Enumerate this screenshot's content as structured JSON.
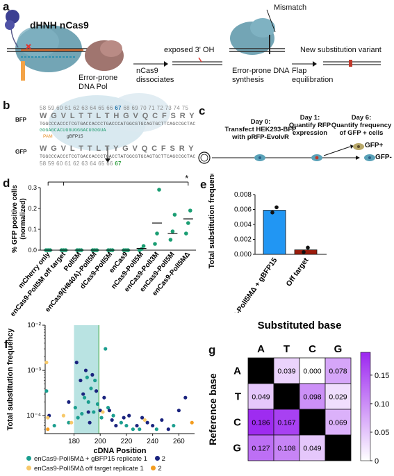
{
  "panels": {
    "a": {
      "label": "a",
      "enzyme": "dHNH nCas9",
      "polymerase": "Error-prone DNA Pol",
      "step1": "nCas9 dissociates",
      "exposed": "exposed 3' OH",
      "step2": "Error-prone DNA synthesis",
      "mismatch": "Mismatch",
      "step3": "Flap equilibration",
      "result": "New substitution variant"
    },
    "b": {
      "label": "b",
      "bfp_label": "BFP",
      "gfp_label": "GFP",
      "nums_top": "58 59 60 61 62 63 64 65 66",
      "num67_top": "67",
      "nums_top2": "68 69 70 71 72 73 74 75",
      "aa_top": "W  G  V  L  T  T  L  T  H  G  V  Q  C  F  S  R  Y",
      "dna_top": "TGGCCCACCCTCGTGACCACCCTGACCCATGGCGTGCAGTGCTTCAGCCGCTAC",
      "guide": "GGGAGCACUGGUGGGACUGGGUA",
      "pam": "PAM",
      "gbfp": "gBFP15",
      "aa_bottom": "W  G  V  L  T  T  L  T  Y  G  V  Q  C  F  S  R  Y",
      "dna_bottom": "TGGCCCACCCTCGTGACCACCCTGACCTATGGCGTGCAGTGCTTCAGCCGCTAC",
      "nums_bottom": "58 59 60 61 62 63 64 65 66",
      "num67_bottom": "67"
    },
    "c": {
      "label": "c",
      "day0_title": "Day 0:",
      "day0_text": "Transfect HEK293-BFP with pRFP-EvolvR",
      "day1_title": "Day 1:",
      "day1_text": "Quantify RFP expression",
      "day6_title": "Day 6:",
      "day6_text": "Quantify frequency of GFP + cells",
      "gfp_pos": "GFP+",
      "gfp_neg": "GFP-"
    },
    "d": {
      "label": "d"
    },
    "e": {
      "label": "e"
    },
    "f": {
      "label": "f",
      "legend": [
        {
          "text": "enCas9-PolI5MΔ + gBFP15 replicate 1",
          "color": "#1b9e8f"
        },
        {
          "text": "2",
          "color": "#1a237e"
        },
        {
          "text": "enCas9-PolI5MΔ off target replicate 1",
          "color": "#f7c96a"
        },
        {
          "text": "2",
          "color": "#f39c1e"
        }
      ]
    },
    "g": {
      "label": "g"
    }
  },
  "colors": {
    "green_dot": "#1b9e73",
    "blue_bar": "#2196f3",
    "red_bar": "#9b1b0b",
    "teal_band": "#7fcccb",
    "purple": "#9c27f0"
  },
  "chart_data": [
    {
      "id": "d",
      "type": "scatter",
      "ylabel": "% GFP positive cells\n(normalized)",
      "ylim": [
        0,
        0.3
      ],
      "yticks": [
        "0.0",
        "0.1",
        "0.2",
        "0.3"
      ],
      "significance": "*",
      "categories": [
        "mCherry only",
        "enCas9-PolI5M off target",
        "PolI5M",
        "enCas9(H840A)-PolI5M",
        "dCas9-PolI5M",
        "enCas9",
        "nCas9-PolI5M",
        "enCas9-PolI3M",
        "enCas9-PolI5M",
        "enCas9-PolI5MΔ"
      ],
      "points": [
        [
          0,
          0,
          0
        ],
        [
          0,
          0,
          0
        ],
        [
          0,
          0,
          0
        ],
        [
          0,
          0,
          0
        ],
        [
          0,
          0,
          0
        ],
        [
          0,
          0,
          0
        ],
        [
          0,
          0.005,
          0.02
        ],
        [
          0.03,
          0.08,
          0.29
        ],
        [
          0.05,
          0.09,
          0.17
        ],
        [
          0.08,
          0.13,
          0.19
        ]
      ],
      "means": [
        0,
        0,
        0,
        0,
        0,
        0,
        0.008,
        0.13,
        0.08,
        0.15
      ]
    },
    {
      "id": "e",
      "type": "bar",
      "ylabel": "Total substitution frequency",
      "ylim": [
        0,
        0.008
      ],
      "yticks": [
        "0.000",
        "0.002",
        "0.004",
        "0.006",
        "0.008"
      ],
      "categories": [
        "enCas9-PolI5MΔ + gBFP15",
        "Off target"
      ],
      "values": [
        0.0059,
        0.0006
      ],
      "points": [
        [
          0.0056,
          0.0063
        ],
        [
          0.0003,
          0.0009
        ]
      ]
    },
    {
      "id": "f",
      "type": "scatter",
      "xlabel": "cDNA Position",
      "ylabel": "Total substitution frequency",
      "xlim": [
        158,
        272
      ],
      "xticks": [
        "180",
        "200",
        "220",
        "240",
        "260"
      ],
      "ylog": [
        4e-05,
        0.01
      ],
      "yticks": [
        "10⁻²",
        "10⁻³",
        "10⁻⁴"
      ],
      "highlight_range": [
        180,
        199
      ],
      "marker_line": 199,
      "series": [
        {
          "name": "enCas9-PolI5MΔ + gBFP15 replicate 1",
          "points": [
            [
              159,
              0.00035
            ],
            [
              165,
              6e-05
            ],
            [
              176,
              7e-05
            ],
            [
              181,
              0.00015
            ],
            [
              183,
              9e-05
            ],
            [
              186,
              0.00011
            ],
            [
              188,
              0.00025
            ],
            [
              190,
              0.0007
            ],
            [
              191,
              0.0002
            ],
            [
              193,
              0.0004
            ],
            [
              195,
              0.00012
            ],
            [
              196,
              0.0006
            ],
            [
              198,
              0.00018
            ],
            [
              201,
              9e-05
            ],
            [
              204,
              0.003
            ],
            [
              206,
              0.00015
            ],
            [
              210,
              0.0001
            ],
            [
              216,
              7e-05
            ],
            [
              220,
              6e-05
            ],
            [
              225,
              5e-05
            ],
            [
              230,
              5e-05
            ],
            [
              243,
              5e-05
            ],
            [
              256,
              6e-05
            ]
          ]
        },
        {
          "name": "2",
          "points": [
            [
              161,
              0.0001
            ],
            [
              176,
              0.0002
            ],
            [
              182,
              0.0015
            ],
            [
              185,
              0.0006
            ],
            [
              187,
              0.0003
            ],
            [
              189,
              0.001
            ],
            [
              191,
              0.00012
            ],
            [
              192,
              7e-05
            ],
            [
              194,
              0.0008
            ],
            [
              197,
              0.00035
            ],
            [
              200,
              0.00013
            ],
            [
              203,
              0.00025
            ],
            [
              207,
              0.00013
            ],
            [
              209,
              8e-05
            ],
            [
              212,
              6e-05
            ],
            [
              218,
              9e-05
            ],
            [
              222,
              0.0001
            ],
            [
              228,
              6e-05
            ],
            [
              232,
              9e-05
            ],
            [
              236,
              7e-05
            ],
            [
              240,
              6e-05
            ],
            [
              247,
              8e-05
            ],
            [
              252,
              5e-05
            ],
            [
              260,
              0.00013
            ],
            [
              265,
              0.00025
            ]
          ]
        },
        {
          "name": "enCas9-PolI5MΔ off target replicate 1",
          "points": [
            [
              159,
              0.0015
            ],
            [
              160,
              9e-05
            ],
            [
              172,
              0.0001
            ],
            [
              178,
              7e-05
            ],
            [
              202,
              0.00012
            ],
            [
              234,
              8e-05
            ]
          ]
        },
        {
          "name": "2",
          "points": [
            [
              270,
              7e-05
            ],
            [
              160,
              5e-05
            ]
          ]
        }
      ]
    },
    {
      "id": "g",
      "type": "heatmap",
      "title": "Substituted base",
      "ylabel": "Reference base",
      "columns": [
        "A",
        "T",
        "C",
        "G"
      ],
      "rows": [
        "A",
        "T",
        "C",
        "G"
      ],
      "values": [
        [
          null,
          0.039,
          0.0,
          0.078
        ],
        [
          0.049,
          null,
          0.098,
          0.029
        ],
        [
          0.186,
          0.167,
          null,
          0.069
        ],
        [
          0.127,
          0.108,
          0.049,
          null
        ]
      ],
      "labels": [
        [
          "",
          "0.039",
          "0.000",
          "0.078"
        ],
        [
          "0.049",
          "",
          "0.098",
          "0.029"
        ],
        [
          "0.186",
          "0.167",
          "",
          "0.069"
        ],
        [
          "0.127",
          "0.108",
          "0.049",
          ""
        ]
      ],
      "colorbar_ticks": [
        "0.15",
        "0.10",
        "0.05",
        "0"
      ],
      "range": [
        0,
        0.19
      ]
    }
  ]
}
